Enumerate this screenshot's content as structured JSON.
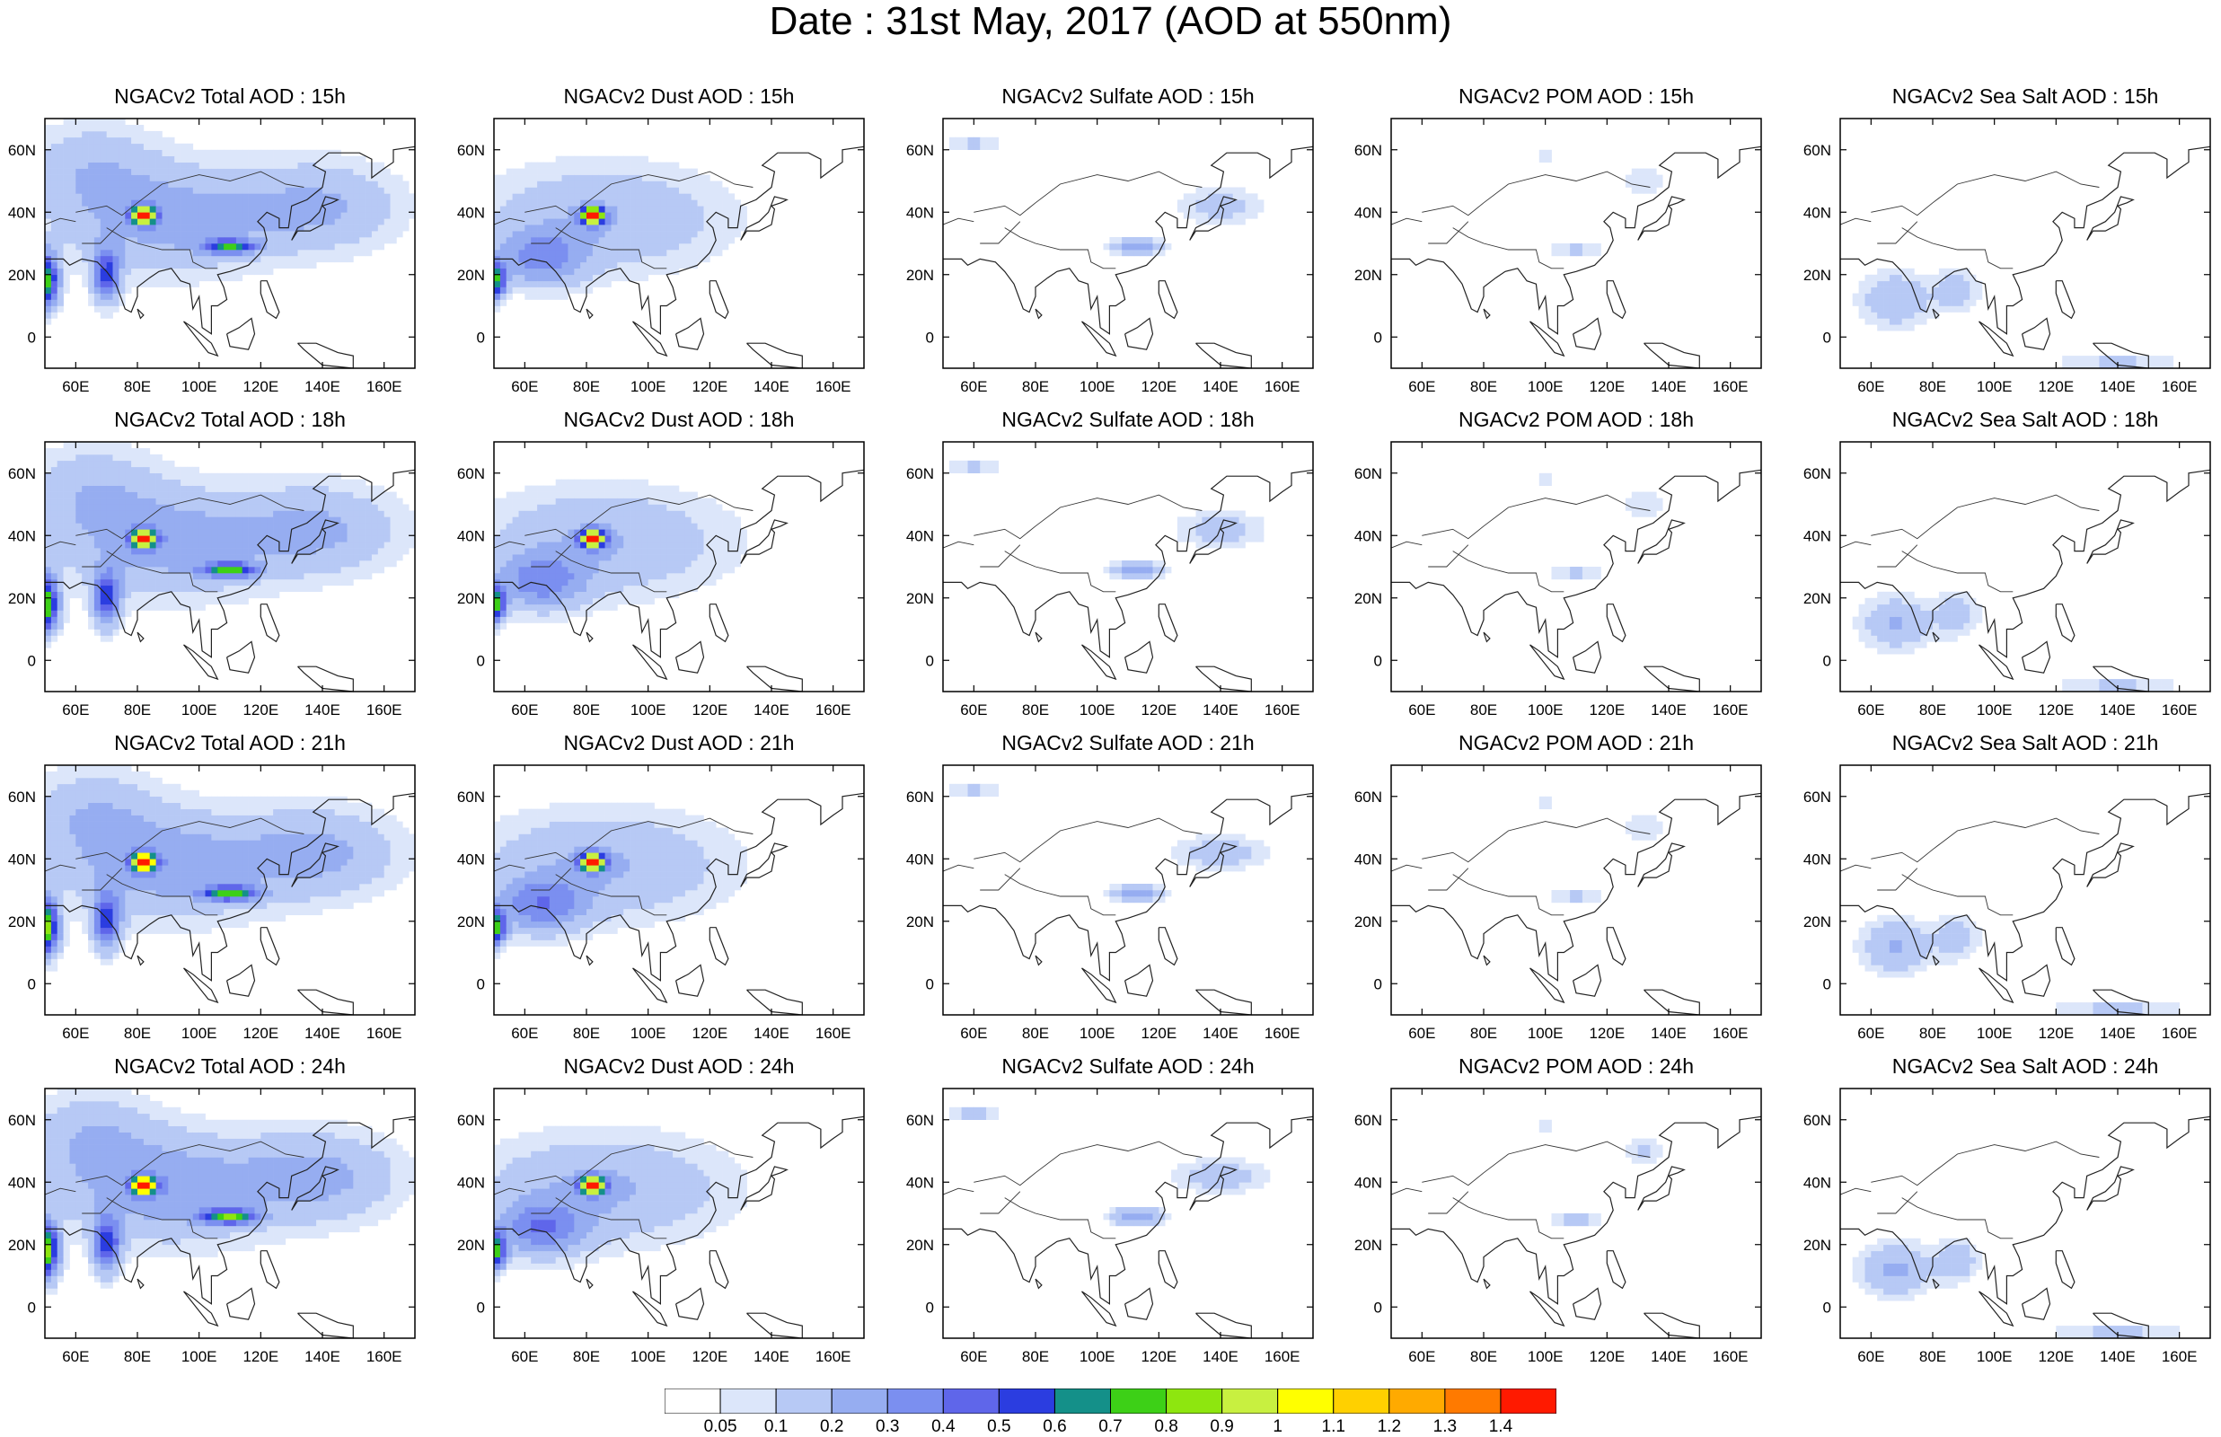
{
  "title": "Date : 31st May, 2017 (AOD at 550nm)",
  "layout": {
    "rows": 4,
    "cols": 5
  },
  "panel_titles": [
    [
      "NGACv2 Total AOD : 15h",
      "NGACv2 Dust AOD : 15h",
      "NGACv2 Sulfate AOD : 15h",
      "NGACv2 POM AOD : 15h",
      "NGACv2 Sea Salt AOD : 15h"
    ],
    [
      "NGACv2 Total AOD : 18h",
      "NGACv2 Dust AOD : 18h",
      "NGACv2 Sulfate AOD : 18h",
      "NGACv2 POM AOD : 18h",
      "NGACv2 Sea Salt AOD : 18h"
    ],
    [
      "NGACv2 Total AOD : 21h",
      "NGACv2 Dust AOD : 21h",
      "NGACv2 Sulfate AOD : 21h",
      "NGACv2 POM AOD : 21h",
      "NGACv2 Sea Salt AOD : 21h"
    ],
    [
      "NGACv2 Total AOD : 24h",
      "NGACv2 Dust AOD : 24h",
      "NGACv2 Sulfate AOD : 24h",
      "NGACv2 POM AOD : 24h",
      "NGACv2 Sea Salt  AOD : 24h"
    ]
  ],
  "map_extent": {
    "lon": [
      50,
      170
    ],
    "lat": [
      -10,
      70
    ]
  },
  "x_ticks": [
    "60E",
    "80E",
    "100E",
    "120E",
    "140E",
    "160E"
  ],
  "x_tick_values": [
    60,
    80,
    100,
    120,
    140,
    160
  ],
  "y_ticks": [
    "0",
    "20N",
    "40N",
    "60N"
  ],
  "y_tick_values": [
    0,
    20,
    40,
    60
  ],
  "colorbar": {
    "labels": [
      "0.05",
      "0.1",
      "0.2",
      "0.3",
      "0.4",
      "0.5",
      "0.6",
      "0.7",
      "0.8",
      "0.9",
      "1",
      "1.1",
      "1.2",
      "1.3",
      "1.4"
    ],
    "colors": [
      "#ffffff",
      "#dce6fa",
      "#b7c9f5",
      "#96adf1",
      "#7b8ff0",
      "#5f66ea",
      "#2b3de0",
      "#149089",
      "#3dd017",
      "#8ee60f",
      "#c8f040",
      "#ffff00",
      "#ffd000",
      "#ffaa00",
      "#ff7a00",
      "#ff1a00"
    ]
  },
  "fields": {
    "Total": [
      {
        "lon": 50,
        "lat": 18,
        "v": 0.8,
        "sx": 3,
        "sy": 6
      },
      {
        "lon": 70,
        "lat": 20,
        "v": 0.5,
        "sx": 3,
        "sy": 6
      },
      {
        "lon": 82,
        "lat": 39,
        "v": 1.4,
        "sx": 2.5,
        "sy": 1.8
      },
      {
        "lon": 110,
        "lat": 29,
        "v": 0.6,
        "sx": 6,
        "sy": 1.5
      },
      {
        "lon": 90,
        "lat": 38,
        "v": 0.25,
        "sx": 25,
        "sy": 12
      },
      {
        "lon": 140,
        "lat": 42,
        "v": 0.2,
        "sx": 18,
        "sy": 10
      },
      {
        "lon": 65,
        "lat": 55,
        "v": 0.15,
        "sx": 15,
        "sy": 10
      }
    ],
    "Dust": [
      {
        "lon": 50,
        "lat": 18,
        "v": 0.7,
        "sx": 2.5,
        "sy": 4
      },
      {
        "lon": 82,
        "lat": 39,
        "v": 1.4,
        "sx": 2.5,
        "sy": 1.8
      },
      {
        "lon": 85,
        "lat": 38,
        "v": 0.2,
        "sx": 28,
        "sy": 12
      },
      {
        "lon": 65,
        "lat": 25,
        "v": 0.3,
        "sx": 10,
        "sy": 6
      }
    ],
    "Sulfate": [
      {
        "lon": 113,
        "lat": 29,
        "v": 0.25,
        "sx": 6,
        "sy": 2
      },
      {
        "lon": 140,
        "lat": 42,
        "v": 0.15,
        "sx": 10,
        "sy": 4
      },
      {
        "lon": 60,
        "lat": 62,
        "v": 0.12,
        "sx": 6,
        "sy": 2
      }
    ],
    "POM": [
      {
        "lon": 110,
        "lat": 28,
        "v": 0.12,
        "sx": 6,
        "sy": 2
      },
      {
        "lon": 132,
        "lat": 50,
        "v": 0.1,
        "sx": 5,
        "sy": 3
      },
      {
        "lon": 100,
        "lat": 58,
        "v": 0.08,
        "sx": 3,
        "sy": 2
      }
    ],
    "Sea Salt": [
      {
        "lon": 68,
        "lat": 12,
        "v": 0.2,
        "sx": 8,
        "sy": 6
      },
      {
        "lon": 88,
        "lat": 15,
        "v": 0.15,
        "sx": 5,
        "sy": 5
      },
      {
        "lon": 140,
        "lat": -8,
        "v": 0.12,
        "sx": 15,
        "sy": 2
      }
    ]
  }
}
